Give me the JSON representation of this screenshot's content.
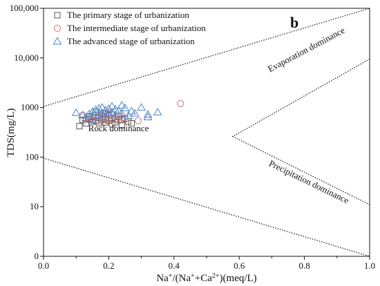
{
  "chart_data": {
    "type": "scatter",
    "panel_label": "b",
    "xlabel": {
      "base": "Na",
      "sup1": "+",
      "mid": "/(Na",
      "sup2": "+",
      "mid2": "+Ca",
      "sup3": "2+",
      "end": ")(meq/L)"
    },
    "ylabel": "TDS(mg/L)",
    "xlim": [
      0.0,
      1.0
    ],
    "ylim": [
      0,
      100000
    ],
    "y_scale": "log",
    "x_ticks": [
      "0.0",
      "0.2",
      "0.4",
      "0.6",
      "0.8",
      "1.0"
    ],
    "x_tick_values": [
      0.0,
      0.2,
      0.4,
      0.6,
      0.8,
      1.0
    ],
    "y_ticks": [
      "0",
      "10",
      "100",
      "1000",
      "10,000",
      "100,000"
    ],
    "y_tick_values": [
      1,
      10,
      100,
      1000,
      10000,
      100000
    ],
    "grid": false,
    "legend_position": "top-left",
    "series": [
      {
        "name": "The primary stage of urbanization",
        "marker": "square",
        "color": "#555555",
        "points": [
          [
            0.11,
            420
          ],
          [
            0.13,
            480
          ],
          [
            0.14,
            580
          ],
          [
            0.15,
            520
          ],
          [
            0.15,
            640
          ],
          [
            0.16,
            700
          ],
          [
            0.16,
            540
          ],
          [
            0.17,
            620
          ],
          [
            0.17,
            480
          ],
          [
            0.18,
            560
          ],
          [
            0.18,
            660
          ],
          [
            0.19,
            500
          ],
          [
            0.19,
            600
          ],
          [
            0.2,
            700
          ],
          [
            0.2,
            540
          ],
          [
            0.21,
            460
          ],
          [
            0.21,
            620
          ],
          [
            0.22,
            580
          ],
          [
            0.22,
            500
          ],
          [
            0.23,
            660
          ],
          [
            0.24,
            440
          ],
          [
            0.24,
            560
          ],
          [
            0.25,
            600
          ],
          [
            0.26,
            520
          ],
          [
            0.27,
            480
          ],
          [
            0.16,
            820
          ],
          [
            0.19,
            760
          ],
          [
            0.14,
            660
          ],
          [
            0.12,
            560
          ]
        ]
      },
      {
        "name": "The intermediate stage of urbanization",
        "marker": "circle",
        "color": "#d9706d",
        "points": [
          [
            0.12,
            700
          ],
          [
            0.13,
            620
          ],
          [
            0.14,
            560
          ],
          [
            0.15,
            600
          ],
          [
            0.16,
            640
          ],
          [
            0.17,
            520
          ],
          [
            0.17,
            700
          ],
          [
            0.18,
            580
          ],
          [
            0.18,
            660
          ],
          [
            0.19,
            620
          ],
          [
            0.2,
            560
          ],
          [
            0.2,
            700
          ],
          [
            0.21,
            600
          ],
          [
            0.22,
            640
          ],
          [
            0.23,
            540
          ],
          [
            0.24,
            620
          ],
          [
            0.25,
            580
          ],
          [
            0.29,
            540
          ],
          [
            0.42,
            1200
          ],
          [
            0.2,
            760
          ]
        ]
      },
      {
        "name": "The advanced stage of urbanization",
        "marker": "triangle",
        "color": "#4a84c6",
        "points": [
          [
            0.1,
            780
          ],
          [
            0.12,
            700
          ],
          [
            0.13,
            600
          ],
          [
            0.14,
            740
          ],
          [
            0.15,
            820
          ],
          [
            0.15,
            560
          ],
          [
            0.16,
            900
          ],
          [
            0.17,
            680
          ],
          [
            0.17,
            960
          ],
          [
            0.18,
            760
          ],
          [
            0.18,
            1000
          ],
          [
            0.19,
            640
          ],
          [
            0.19,
            880
          ],
          [
            0.2,
            720
          ],
          [
            0.2,
            940
          ],
          [
            0.21,
            800
          ],
          [
            0.21,
            1050
          ],
          [
            0.22,
            700
          ],
          [
            0.22,
            920
          ],
          [
            0.23,
            860
          ],
          [
            0.24,
            760
          ],
          [
            0.25,
            980
          ],
          [
            0.26,
            680
          ],
          [
            0.27,
            840
          ],
          [
            0.28,
            760
          ],
          [
            0.3,
            1000
          ],
          [
            0.32,
            720
          ],
          [
            0.32,
            640
          ],
          [
            0.35,
            800
          ],
          [
            0.24,
            1100
          ]
        ]
      }
    ],
    "reference_lines": [
      {
        "name": "upper-boundary",
        "points": [
          [
            0.0,
            1050
          ],
          [
            1.0,
            100000
          ]
        ]
      },
      {
        "name": "lower-boundary",
        "points": [
          [
            0.0,
            95
          ],
          [
            1.0,
            1
          ]
        ]
      },
      {
        "name": "evaporation-precipitation-wedge",
        "points": [
          [
            1.0,
            9500
          ],
          [
            0.58,
            260
          ],
          [
            1.0,
            11
          ]
        ]
      }
    ],
    "annotations": [
      {
        "name": "rock-dominance-label",
        "text": "Rock dominance",
        "x": 0.23,
        "y": 330,
        "rotate": 0
      },
      {
        "name": "evaporation-dominance-label",
        "text": "Evaporation dominance",
        "x": 0.81,
        "y": 13000,
        "rotate": -28
      },
      {
        "name": "precipitation-dominance-label",
        "text": "Precipitation dominance",
        "x": 0.81,
        "y": 28,
        "rotate": 26
      }
    ]
  },
  "colors": {
    "axis": "#111111",
    "boundary": "#222222",
    "primary": "#555555",
    "intermediate": "#d9706d",
    "advanced": "#4a84c6"
  }
}
